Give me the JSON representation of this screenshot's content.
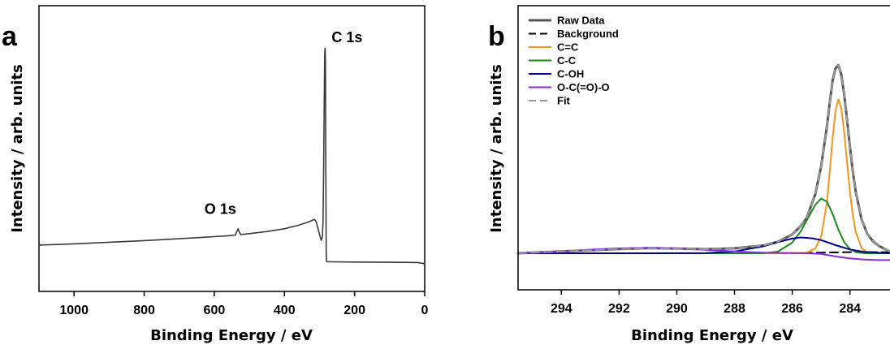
{
  "chart_data": [
    {
      "panel": "a",
      "type": "line",
      "xlabel": "Binding Energy / eV",
      "ylabel": "Intensity / arb. units",
      "xlim": [
        1100,
        0
      ],
      "ylim": [
        0,
        100
      ],
      "x_ticks": [
        1000,
        800,
        600,
        400,
        200,
        0
      ],
      "annotations": [
        {
          "text": "O 1s",
          "x": 532,
          "y": 19
        },
        {
          "text": "C 1s",
          "x": 284,
          "y": 97
        }
      ],
      "series": [
        {
          "color": "#3a3a3a",
          "x": [
            1100,
            1000,
            900,
            800,
            700,
            600,
            560,
            540,
            535,
            532,
            529,
            525,
            500,
            450,
            400,
            360,
            330,
            315,
            310,
            305,
            300,
            295,
            292,
            290,
            288,
            286,
            285,
            284,
            283,
            282,
            281,
            280,
            278,
            270,
            200,
            100,
            20,
            0
          ],
          "y": [
            10.5,
            11.0,
            11.7,
            12.4,
            13.2,
            14.1,
            14.5,
            14.8,
            16.5,
            17.5,
            16.2,
            15.0,
            15.4,
            16.3,
            17.5,
            19.0,
            20.5,
            21.5,
            20.8,
            18.0,
            15.0,
            12.5,
            14.0,
            20.0,
            45.0,
            80.0,
            93.0,
            95.0,
            88.0,
            45.0,
            8.0,
            3.5,
            3.3,
            3.3,
            3.2,
            3.1,
            3.0,
            2.5
          ]
        }
      ]
    },
    {
      "panel": "b",
      "type": "line",
      "xlabel": "Binding Energy / eV",
      "ylabel": "Intensity / arb. units",
      "xlim": [
        295.5,
        282.5
      ],
      "ylim": [
        0,
        100
      ],
      "x_ticks": [
        294,
        292,
        290,
        288,
        286,
        284
      ],
      "legend": {
        "position": "top-left"
      },
      "series": [
        {
          "name": "Raw Data",
          "color": "#555555",
          "dash": "solid",
          "width": 3,
          "x": [
            296,
            294,
            292,
            291,
            290,
            289,
            288,
            287,
            286.5,
            286,
            285.7,
            285.5,
            285.2,
            285.0,
            284.8,
            284.7,
            284.6,
            284.5,
            284.4,
            284.3,
            284.2,
            284.1,
            284.0,
            283.9,
            283.8,
            283.6,
            283.4,
            283.2,
            283.0,
            282.8,
            282.5
          ],
          "y": [
            0.0,
            0.8,
            1.9,
            2.3,
            2.1,
            1.8,
            2.2,
            3.4,
            5.1,
            8.3,
            12.1,
            15.6,
            26.1,
            38.4,
            55.9,
            66.5,
            76.5,
            81.6,
            83.1,
            79.0,
            70.0,
            58.9,
            47.0,
            36.1,
            27.2,
            15.0,
            8.6,
            5.3,
            3.3,
            1.9,
            0.0
          ]
        },
        {
          "name": "Background",
          "color": "#000000",
          "dash": "dashed",
          "width": 2,
          "x": [
            296,
            294,
            290,
            288,
            286,
            285,
            284.5,
            284,
            283.5,
            283,
            282.5
          ],
          "y": [
            0.0,
            0.0,
            0.0,
            0.0,
            0.1,
            0.3,
            0.4,
            0.5,
            0.5,
            0.5,
            0.4
          ]
        },
        {
          "name": "C=C",
          "color": "#f7941d",
          "dash": "solid",
          "width": 2,
          "x": [
            296,
            286.5,
            285.5,
            285.2,
            285.0,
            284.8,
            284.7,
            284.6,
            284.5,
            284.4,
            284.3,
            284.2,
            284.1,
            284.0,
            283.9,
            283.8,
            283.6,
            283.4,
            283.0,
            282.5
          ],
          "y": [
            0.0,
            0.0,
            0.3,
            2.1,
            7.4,
            22.2,
            36.5,
            51.1,
            62.9,
            68.0,
            63.9,
            53.4,
            40.1,
            27.2,
            16.8,
            9.5,
            2.3,
            0.4,
            0.0,
            0.0
          ]
        },
        {
          "name": "C-C",
          "color": "#1a8a1a",
          "dash": "solid",
          "width": 2,
          "x": [
            296,
            287.0,
            286.5,
            286.0,
            285.7,
            285.5,
            285.2,
            285.0,
            284.8,
            284.6,
            284.4,
            284.2,
            284.0,
            283.8,
            283.5,
            283.0,
            282.5
          ],
          "y": [
            0.0,
            0.0,
            0.7,
            4.7,
            9.8,
            14.5,
            21.4,
            24.2,
            22.8,
            17.3,
            10.4,
            4.9,
            1.8,
            0.5,
            0.0,
            0.0,
            0.0
          ]
        },
        {
          "name": "C-OH",
          "color": "#00008b",
          "dash": "solid",
          "width": 2,
          "x": [
            296,
            291,
            289,
            288,
            287,
            286.5,
            286,
            285.7,
            285.3,
            285,
            284.5,
            284,
            283.5,
            283,
            282.5
          ],
          "y": [
            0.0,
            0.0,
            0.1,
            0.8,
            3.1,
            4.9,
            6.5,
            7.0,
            6.6,
            5.8,
            3.6,
            1.7,
            0.6,
            0.2,
            0.0
          ]
        },
        {
          "name": "O-C(=O)-O",
          "color": "#8a2be2",
          "dash": "solid",
          "width": 2,
          "x": [
            296,
            294,
            293,
            292,
            291,
            290,
            289,
            288,
            287,
            286,
            285.5,
            285,
            284.5,
            284,
            283.5,
            283,
            282.5
          ],
          "y": [
            0.0,
            0.6,
            1.6,
            2.2,
            2.4,
            2.2,
            1.5,
            0.8,
            0.3,
            0.1,
            0.0,
            -0.3,
            -1.4,
            -2.3,
            -2.8,
            -3.0,
            -3.0
          ]
        },
        {
          "name": "Fit",
          "color": "#999999",
          "dash": "dashed",
          "width": 2,
          "x": [
            296,
            294,
            292,
            291,
            290,
            289,
            288,
            287,
            286.5,
            286,
            285.7,
            285.5,
            285.2,
            285.0,
            284.8,
            284.7,
            284.6,
            284.5,
            284.4,
            284.3,
            284.2,
            284.1,
            284.0,
            283.9,
            283.8,
            283.6,
            283.4,
            283.2,
            283.0,
            282.8,
            282.5
          ],
          "y": [
            0.0,
            0.8,
            1.9,
            2.3,
            2.1,
            1.8,
            2.2,
            3.4,
            5.1,
            8.3,
            12.1,
            15.6,
            26.1,
            38.4,
            55.9,
            66.5,
            76.5,
            81.6,
            83.1,
            79.0,
            70.0,
            58.9,
            47.0,
            36.1,
            27.2,
            15.0,
            8.6,
            5.3,
            3.3,
            1.9,
            0.0
          ]
        }
      ]
    }
  ]
}
